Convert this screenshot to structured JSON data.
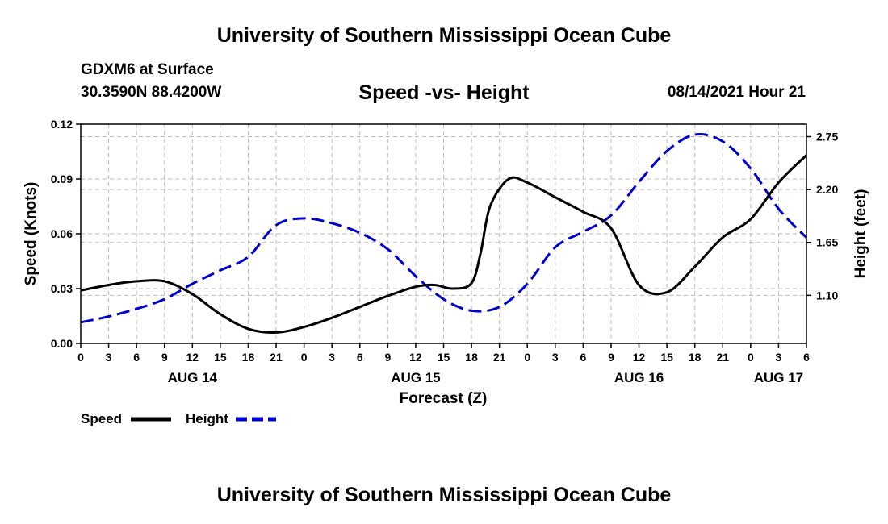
{
  "header": {
    "top_title": "University of Southern Mississippi Ocean Cube",
    "station": "GDXM6 at Surface",
    "coords": "30.3590N  88.4200W",
    "chart_title": "Speed -vs- Height",
    "datetime": "08/14/2021 Hour 21",
    "bottom_title": "University of Southern Mississippi Ocean Cube"
  },
  "chart_data": {
    "type": "line",
    "title": "Speed -vs- Height",
    "xlabel": "Forecast (Z)",
    "ylabel": "Speed (Knots)",
    "y2label": "Height (feet)",
    "x_unit": "forecast hours from AUG 14 00Z",
    "xlim": [
      0,
      78
    ],
    "ylim": [
      0,
      0.12
    ],
    "y2lim": [
      0.6,
      2.88
    ],
    "grid": true,
    "x_ticks": [
      0,
      3,
      6,
      9,
      12,
      15,
      18,
      21,
      24,
      27,
      30,
      33,
      36,
      39,
      42,
      45,
      48,
      51,
      54,
      57,
      60,
      63,
      66,
      69,
      72,
      75,
      78
    ],
    "x_tick_labels": [
      "0",
      "3",
      "6",
      "9",
      "12",
      "15",
      "18",
      "21",
      "0",
      "3",
      "6",
      "9",
      "12",
      "15",
      "18",
      "21",
      "0",
      "3",
      "6",
      "9",
      "12",
      "15",
      "18",
      "21",
      "0",
      "3",
      "6"
    ],
    "day_labels": [
      {
        "x": 12,
        "label": "AUG 14"
      },
      {
        "x": 36,
        "label": "AUG 15"
      },
      {
        "x": 60,
        "label": "AUG 16"
      },
      {
        "x": 75,
        "label": "AUG 17"
      }
    ],
    "y_ticks": [
      0,
      0.03,
      0.06,
      0.09,
      0.12
    ],
    "y_tick_labels": [
      "0.00",
      "0.03",
      "0.06",
      "0.09",
      "0.12"
    ],
    "y2_ticks": [
      1.1,
      1.65,
      2.2,
      2.75
    ],
    "y2_tick_labels": [
      "1.10",
      "1.65",
      "2.20",
      "2.75"
    ],
    "series": [
      {
        "name": "Speed",
        "axis": "left",
        "color": "#000000",
        "style": "solid",
        "x": [
          0,
          3,
          6,
          9,
          12,
          15,
          18,
          21,
          24,
          27,
          30,
          33,
          36,
          38,
          40,
          42,
          43,
          44,
          46,
          48,
          51,
          54,
          57,
          60,
          63,
          66,
          69,
          72,
          75,
          78
        ],
        "y": [
          0.029,
          0.032,
          0.034,
          0.034,
          0.027,
          0.016,
          0.008,
          0.006,
          0.009,
          0.014,
          0.02,
          0.026,
          0.031,
          0.032,
          0.03,
          0.033,
          0.05,
          0.075,
          0.09,
          0.088,
          0.08,
          0.072,
          0.063,
          0.032,
          0.028,
          0.042,
          0.058,
          0.068,
          0.088,
          0.103
        ]
      },
      {
        "name": "Height",
        "axis": "right",
        "color": "#0000cc",
        "style": "dashed",
        "x": [
          0,
          3,
          6,
          9,
          12,
          15,
          18,
          21,
          24,
          27,
          30,
          33,
          36,
          39,
          42,
          45,
          48,
          51,
          54,
          57,
          60,
          63,
          66,
          69,
          72,
          75,
          78
        ],
        "y": [
          0.82,
          0.88,
          0.96,
          1.06,
          1.22,
          1.36,
          1.5,
          1.83,
          1.9,
          1.85,
          1.75,
          1.58,
          1.3,
          1.06,
          0.94,
          0.98,
          1.22,
          1.6,
          1.76,
          1.93,
          2.28,
          2.6,
          2.77,
          2.7,
          2.42,
          2.0,
          1.7
        ]
      }
    ]
  },
  "legend": {
    "speed_label": "Speed",
    "height_label": "Height"
  }
}
